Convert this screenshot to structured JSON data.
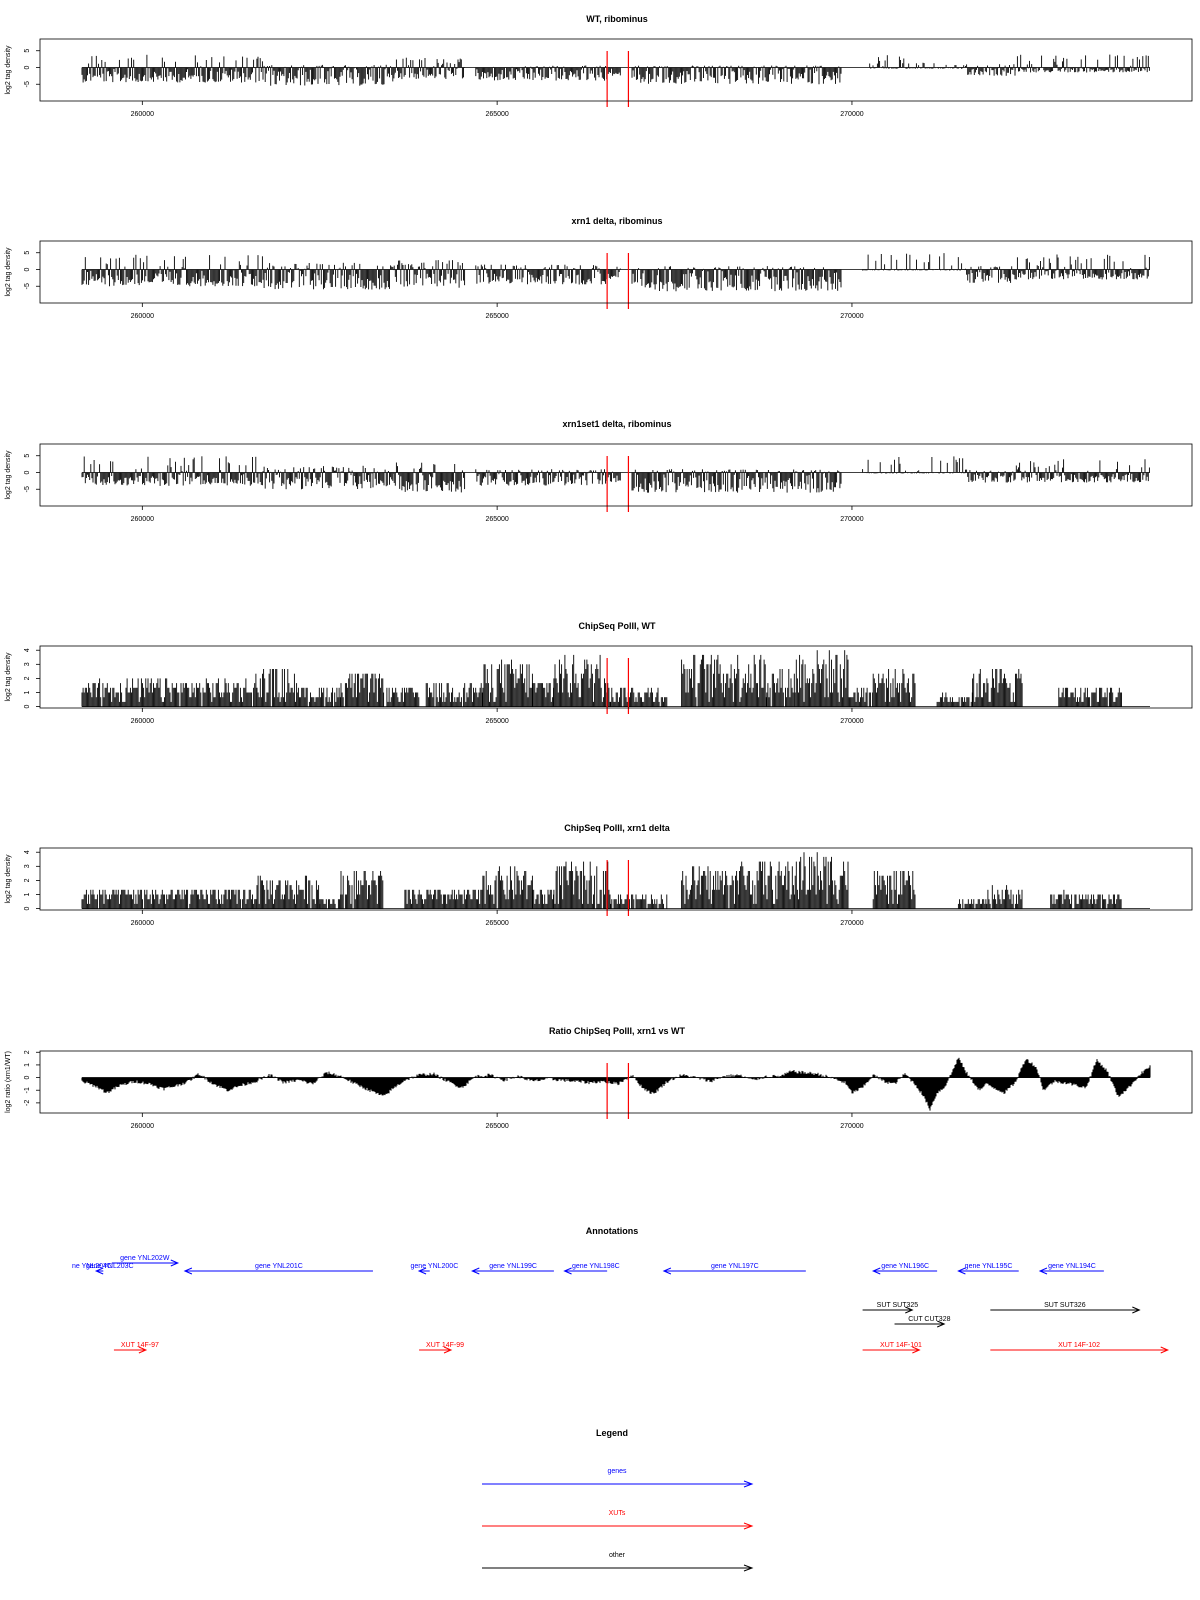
{
  "chart_data": [
    {
      "type": "bar",
      "title": "WT, ribominus",
      "xlabel": "",
      "ylabel": "log2 tag density",
      "xlim": [
        259150,
        274200
      ],
      "ylim": [
        -10,
        8.5
      ],
      "yticks": [
        -5,
        0,
        5
      ],
      "xticks": [
        260000,
        265000,
        270000
      ],
      "markers": [
        266550,
        266850
      ],
      "marker_color": "#ff0000",
      "segments": [
        {
          "x": [
            259150,
            261700
          ],
          "y": [
            -4.5,
            3.8
          ]
        },
        {
          "x": [
            261700,
            263550
          ],
          "y": [
            -5.5,
            0.8
          ]
        },
        {
          "x": [
            263550,
            264550
          ],
          "y": [
            -3.5,
            3
          ]
        },
        {
          "x": [
            264700,
            266550
          ],
          "y": [
            -4,
            0.6
          ]
        },
        {
          "x": [
            266550,
            266750
          ],
          "y": [
            -2.5,
            0.4
          ]
        },
        {
          "x": [
            266900,
            269850
          ],
          "y": [
            -5,
            0.6
          ]
        },
        {
          "x": [
            270250,
            270800
          ],
          "y": [
            -0.4,
            4
          ]
        },
        {
          "x": [
            270800,
            271600
          ],
          "y": [
            -0.4,
            1.5
          ]
        },
        {
          "x": [
            271600,
            272300
          ],
          "y": [
            -2.5,
            1
          ]
        },
        {
          "x": [
            272300,
            274200
          ],
          "y": [
            -1.5,
            4
          ]
        }
      ]
    },
    {
      "type": "bar",
      "title": "xrn1 delta, ribominus",
      "xlabel": "",
      "ylabel": "log2 tag density",
      "xlim": [
        259150,
        274200
      ],
      "ylim": [
        -10,
        8.5
      ],
      "yticks": [
        -5,
        0,
        5
      ],
      "xticks": [
        260000,
        265000,
        270000
      ],
      "markers": [
        266550,
        266850
      ],
      "marker_color": "#ff0000",
      "segments": [
        {
          "x": [
            259150,
            261700
          ],
          "y": [
            -5,
            4.5
          ]
        },
        {
          "x": [
            261700,
            263550
          ],
          "y": [
            -6,
            2
          ]
        },
        {
          "x": [
            263550,
            264550
          ],
          "y": [
            -5.5,
            3
          ]
        },
        {
          "x": [
            264700,
            266550
          ],
          "y": [
            -4.5,
            1.5
          ]
        },
        {
          "x": [
            266550,
            266750
          ],
          "y": [
            -3,
            1
          ]
        },
        {
          "x": [
            266900,
            269850
          ],
          "y": [
            -6.5,
            1
          ]
        },
        {
          "x": [
            270150,
            271600
          ],
          "y": [
            -0.3,
            5
          ]
        },
        {
          "x": [
            271600,
            272300
          ],
          "y": [
            -4,
            1
          ]
        },
        {
          "x": [
            272300,
            274200
          ],
          "y": [
            -3,
            4.5
          ]
        }
      ]
    },
    {
      "type": "bar",
      "title": "xrn1set1 delta, ribominus",
      "xlabel": "",
      "ylabel": "log2 tag density",
      "xlim": [
        259150,
        274200
      ],
      "ylim": [
        -10,
        8.5
      ],
      "yticks": [
        -5,
        0,
        5
      ],
      "xticks": [
        260000,
        265000,
        270000
      ],
      "markers": [
        266550,
        266850
      ],
      "marker_color": "#ff0000",
      "segments": [
        {
          "x": [
            259150,
            261700
          ],
          "y": [
            -4,
            5
          ]
        },
        {
          "x": [
            261700,
            263550
          ],
          "y": [
            -5,
            2
          ]
        },
        {
          "x": [
            263550,
            264550
          ],
          "y": [
            -6,
            3.5
          ]
        },
        {
          "x": [
            264700,
            266550
          ],
          "y": [
            -4,
            1
          ]
        },
        {
          "x": [
            266550,
            266750
          ],
          "y": [
            -3,
            0.5
          ]
        },
        {
          "x": [
            266900,
            269850
          ],
          "y": [
            -6,
            1
          ]
        },
        {
          "x": [
            270150,
            271600
          ],
          "y": [
            -0.3,
            5
          ]
        },
        {
          "x": [
            271600,
            272300
          ],
          "y": [
            -3,
            1
          ]
        },
        {
          "x": [
            272300,
            274200
          ],
          "y": [
            -3,
            4
          ]
        }
      ]
    },
    {
      "type": "bar",
      "title": "ChipSeq PolII, WT",
      "xlabel": "",
      "ylabel": "log2 tag density",
      "xlim": [
        259150,
        274200
      ],
      "ylim": [
        -0.1,
        4.3
      ],
      "yticks": [
        0,
        1,
        2,
        3,
        4
      ],
      "xticks": [
        260000,
        265000,
        270000
      ],
      "markers": [
        266550,
        266850
      ],
      "marker_color": "#ff0000",
      "segments": [
        {
          "x": [
            259150,
            261600
          ],
          "y": [
            0,
            2
          ]
        },
        {
          "x": [
            261600,
            262200
          ],
          "y": [
            0,
            2.7
          ]
        },
        {
          "x": [
            262200,
            262800
          ],
          "y": [
            0,
            1.5
          ]
        },
        {
          "x": [
            262800,
            263400
          ],
          "y": [
            0,
            2.5
          ]
        },
        {
          "x": [
            263400,
            263900
          ],
          "y": [
            0,
            1.5
          ]
        },
        {
          "x": [
            264000,
            264800
          ],
          "y": [
            0,
            1.8
          ]
        },
        {
          "x": [
            264800,
            265500
          ],
          "y": [
            0,
            3.3
          ]
        },
        {
          "x": [
            265500,
            265800
          ],
          "y": [
            0,
            2
          ]
        },
        {
          "x": [
            265800,
            266600
          ],
          "y": [
            0,
            3.7
          ]
        },
        {
          "x": [
            266600,
            267400
          ],
          "y": [
            0,
            1.5
          ]
        },
        {
          "x": [
            267600,
            268800
          ],
          "y": [
            0,
            3.8
          ]
        },
        {
          "x": [
            268800,
            269200
          ],
          "y": [
            0,
            2.8
          ]
        },
        {
          "x": [
            269200,
            269950
          ],
          "y": [
            0,
            4
          ]
        },
        {
          "x": [
            269950,
            270300
          ],
          "y": [
            0,
            1.5
          ]
        },
        {
          "x": [
            270300,
            270900
          ],
          "y": [
            0,
            2.8
          ]
        },
        {
          "x": [
            271200,
            271700
          ],
          "y": [
            0,
            1
          ]
        },
        {
          "x": [
            271700,
            272400
          ],
          "y": [
            0,
            2.8
          ]
        },
        {
          "x": [
            272900,
            273800
          ],
          "y": [
            0,
            1.5
          ]
        }
      ]
    },
    {
      "type": "bar",
      "title": "ChipSeq PolII, xrn1 delta",
      "xlabel": "",
      "ylabel": "log2 tag density",
      "xlim": [
        259150,
        274200
      ],
      "ylim": [
        -0.1,
        4.3
      ],
      "yticks": [
        0,
        1,
        2,
        3,
        4
      ],
      "xticks": [
        260000,
        265000,
        270000
      ],
      "markers": [
        266550,
        266850
      ],
      "marker_color": "#ff0000",
      "segments": [
        {
          "x": [
            259150,
            261600
          ],
          "y": [
            0,
            1.5
          ]
        },
        {
          "x": [
            261600,
            262500
          ],
          "y": [
            0,
            2.3
          ]
        },
        {
          "x": [
            262500,
            262800
          ],
          "y": [
            0,
            1
          ]
        },
        {
          "x": [
            262800,
            263400
          ],
          "y": [
            0,
            2.8
          ]
        },
        {
          "x": [
            263700,
            264800
          ],
          "y": [
            0,
            1.5
          ]
        },
        {
          "x": [
            264800,
            265500
          ],
          "y": [
            0,
            3
          ]
        },
        {
          "x": [
            265500,
            265800
          ],
          "y": [
            0,
            1.5
          ]
        },
        {
          "x": [
            265800,
            266600
          ],
          "y": [
            0,
            3.3
          ]
        },
        {
          "x": [
            266600,
            267400
          ],
          "y": [
            0,
            1
          ]
        },
        {
          "x": [
            267600,
            268400
          ],
          "y": [
            0,
            3
          ]
        },
        {
          "x": [
            268400,
            269200
          ],
          "y": [
            0,
            3.5
          ]
        },
        {
          "x": [
            269200,
            269950
          ],
          "y": [
            0,
            4
          ]
        },
        {
          "x": [
            270300,
            270900
          ],
          "y": [
            0,
            2.7
          ]
        },
        {
          "x": [
            271500,
            271900
          ],
          "y": [
            0,
            0.6
          ]
        },
        {
          "x": [
            271900,
            272400
          ],
          "y": [
            0,
            1.6
          ]
        },
        {
          "x": [
            272800,
            273800
          ],
          "y": [
            0,
            1.2
          ]
        }
      ]
    },
    {
      "type": "area",
      "title": "Ratio ChipSeq PolII, xrn1 vs WT",
      "xlabel": "",
      "ylabel": "log2 ratio (xrn1/WT)",
      "xlim": [
        259150,
        274200
      ],
      "ylim": [
        -2.8,
        2.1
      ],
      "yticks": [
        -2,
        -1,
        0,
        1,
        2
      ],
      "xticks": [
        260000,
        265000,
        270000
      ],
      "markers": [
        266550,
        266850
      ],
      "marker_color": "#ff0000",
      "x": [
        259150,
        259350,
        259500,
        259700,
        259900,
        260100,
        260300,
        260500,
        260650,
        260800,
        261000,
        261200,
        261400,
        261600,
        261800,
        262000,
        262200,
        262400,
        262600,
        262800,
        263000,
        263200,
        263400,
        263550,
        263700,
        263900,
        264100,
        264300,
        264500,
        264700,
        264900,
        265100,
        265300,
        265500,
        265700,
        265900,
        266100,
        266300,
        266500,
        266700,
        266900,
        267050,
        267200,
        267400,
        267600,
        267800,
        268000,
        268200,
        268400,
        268600,
        268800,
        269000,
        269150,
        269300,
        269500,
        269700,
        269900,
        270000,
        270150,
        270300,
        270450,
        270600,
        270750,
        270900,
        271000,
        271100,
        271200,
        271300,
        271400,
        271500,
        271600,
        271700,
        271800,
        271900,
        272000,
        272150,
        272300,
        272450,
        272600,
        272700,
        272850,
        273000,
        273150,
        273300,
        273450,
        273600,
        273750,
        273900,
        274050,
        274200
      ],
      "y": [
        -0.3,
        -0.7,
        -1.2,
        -0.6,
        -0.3,
        -0.5,
        -0.9,
        -0.6,
        -0.3,
        0.3,
        -0.5,
        -1.0,
        -0.6,
        -0.3,
        0.2,
        -0.4,
        -0.2,
        -0.5,
        0.4,
        0.1,
        -0.5,
        -1.0,
        -1.5,
        -0.8,
        -0.2,
        0.2,
        0.3,
        -0.3,
        -0.8,
        0.1,
        0.2,
        -0.2,
        0.1,
        -0.3,
        -0.1,
        -0.2,
        -0.3,
        -0.4,
        -0.3,
        -0.5,
        0.2,
        -0.8,
        -1.3,
        -0.3,
        0.2,
        0.0,
        -0.3,
        0.1,
        0.2,
        -0.2,
        0.1,
        0.1,
        0.5,
        0.4,
        0.3,
        0.0,
        -0.4,
        -1.2,
        -0.8,
        0.2,
        -0.3,
        -0.5,
        0.3,
        -0.6,
        -1.4,
        -2.5,
        -1.2,
        -0.8,
        0.3,
        1.6,
        0.5,
        -0.3,
        -1.0,
        -0.5,
        -0.8,
        -1.2,
        -0.4,
        1.5,
        0.8,
        -1.0,
        -0.3,
        -0.4,
        -0.6,
        -0.8,
        1.4,
        0.5,
        -1.5,
        -0.8,
        0.2,
        0.9
      ]
    }
  ],
  "annotations": {
    "title": "Annotations",
    "features": [
      {
        "label": "ne YNL204C",
        "type": "gene",
        "strand": "-",
        "row": 0,
        "start": 259150,
        "end": 259150
      },
      {
        "label": "gene YNL203C",
        "type": "gene",
        "strand": "-",
        "row": 0,
        "start": 259350,
        "end": 259450
      },
      {
        "label": "gene YNL202W",
        "type": "gene",
        "strand": "+",
        "row": -1,
        "start": 259570,
        "end": 260500
      },
      {
        "label": "gene YNL201C",
        "type": "gene",
        "strand": "-",
        "row": 0,
        "start": 260600,
        "end": 263250
      },
      {
        "label": "gene YNL200C",
        "type": "gene",
        "strand": "-",
        "row": 0,
        "start": 263900,
        "end": 264050
      },
      {
        "label": "gene YNL199C",
        "type": "gene",
        "strand": "-",
        "row": 0,
        "start": 264650,
        "end": 265800
      },
      {
        "label": "gene YNL198C",
        "type": "gene",
        "strand": "-",
        "row": 0,
        "start": 265950,
        "end": 266550
      },
      {
        "label": "gene YNL197C",
        "type": "gene",
        "strand": "-",
        "row": 0,
        "start": 267350,
        "end": 269350
      },
      {
        "label": "gene YNL196C",
        "type": "gene",
        "strand": "-",
        "row": 0,
        "start": 270300,
        "end": 271200
      },
      {
        "label": "gene YNL195C",
        "type": "gene",
        "strand": "-",
        "row": 0,
        "start": 271500,
        "end": 272350
      },
      {
        "label": "gene YNL194C",
        "type": "gene",
        "strand": "-",
        "row": 0,
        "start": 272650,
        "end": 273550
      },
      {
        "label": "SUT SUT325",
        "type": "other",
        "strand": "+",
        "row": 1,
        "start": 270150,
        "end": 270850
      },
      {
        "label": "SUT SUT326",
        "type": "other",
        "strand": "+",
        "row": 1,
        "start": 271950,
        "end": 274050
      },
      {
        "label": "CUT CUT328",
        "type": "other",
        "strand": "+",
        "row": 2,
        "start": 270600,
        "end": 271300
      },
      {
        "label": "XUT 14F-97",
        "type": "xut",
        "strand": "+",
        "row": 3,
        "start": 259600,
        "end": 260050
      },
      {
        "label": "XUT 14F-99",
        "type": "xut",
        "strand": "+",
        "row": 3,
        "start": 263900,
        "end": 264350
      },
      {
        "label": "XUT 14F-101",
        "type": "xut",
        "strand": "+",
        "row": 3,
        "start": 270150,
        "end": 270950
      },
      {
        "label": "XUT 14F-102",
        "type": "xut",
        "strand": "+",
        "row": 3,
        "start": 271950,
        "end": 274450
      }
    ]
  },
  "legend": {
    "title": "Legend",
    "items": [
      {
        "label": "genes",
        "color": "#0000ff"
      },
      {
        "label": "XUTs",
        "color": "#ff0000"
      },
      {
        "label": "other",
        "color": "#000000"
      }
    ]
  },
  "colors": {
    "gene": "#0000ff",
    "xut": "#ff0000",
    "other": "#000000",
    "marker": "#ff0000",
    "signal": "#000000"
  }
}
